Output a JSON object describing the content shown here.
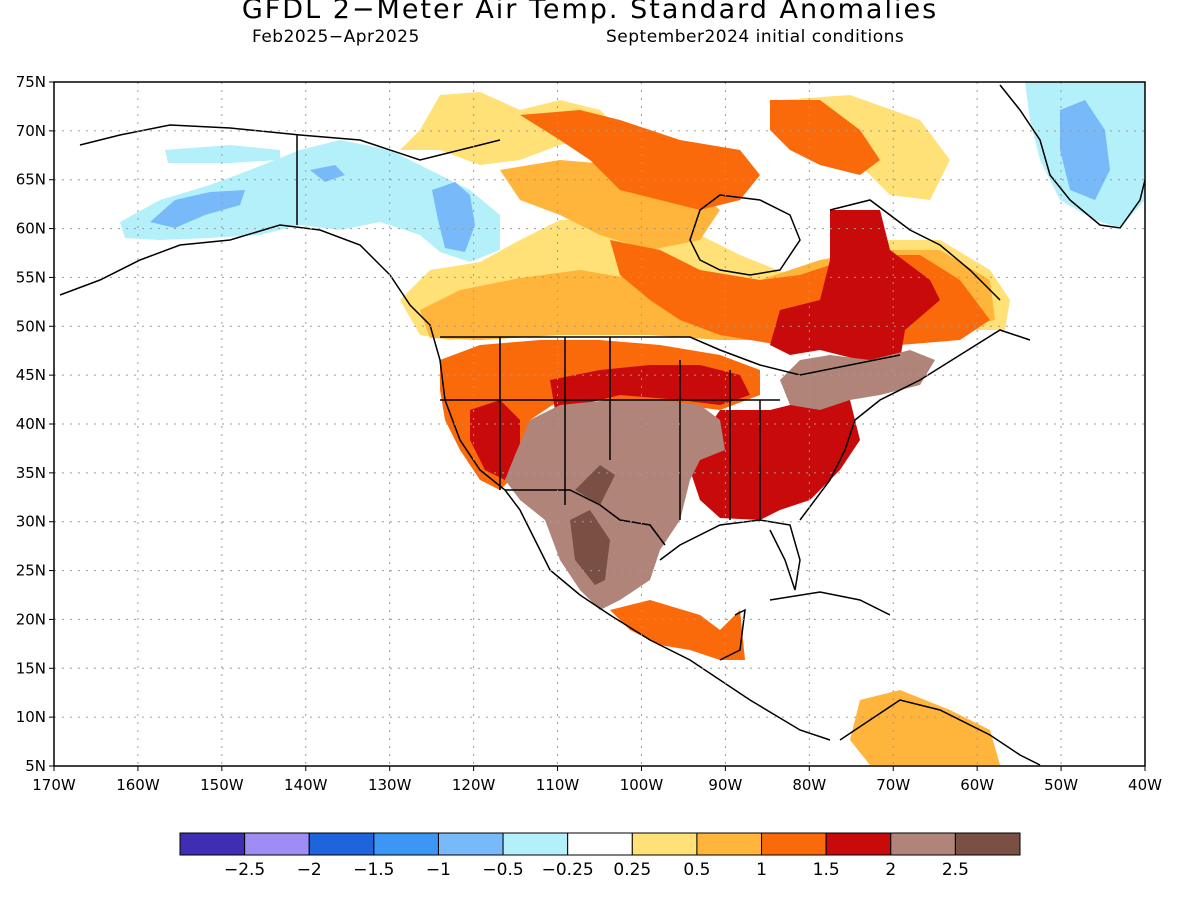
{
  "header": {
    "title": "GFDL 2−Meter Air Temp. Standard Anomalies",
    "period": "Feb2025−Apr2025",
    "init": "September2024 initial conditions"
  },
  "map": {
    "lat_labels": [
      "75N",
      "70N",
      "65N",
      "60N",
      "55N",
      "50N",
      "45N",
      "40N",
      "35N",
      "30N",
      "25N",
      "20N",
      "15N",
      "10N",
      "5N"
    ],
    "lon_labels": [
      "170W",
      "160W",
      "150W",
      "140W",
      "130W",
      "120W",
      "110W",
      "100W",
      "90W",
      "80W",
      "70W",
      "60W",
      "50W",
      "40W"
    ],
    "lat_range": [
      5,
      75
    ],
    "lon_range": [
      -170,
      -40
    ],
    "grid": "dotted"
  },
  "colorbar": {
    "colors": [
      "#3f2eb4",
      "#a08cf5",
      "#1e64dc",
      "#3c96f5",
      "#78b9fa",
      "#b4f0fa",
      "#ffffff",
      "#ffe178",
      "#ffb43c",
      "#fa6a0a",
      "#c80a0a",
      "#b08478",
      "#7a5044"
    ],
    "labels": [
      "−2.5",
      "−2",
      "−1.5",
      "−1",
      "−0.5",
      "−0.25",
      "0.25",
      "0.5",
      "1",
      "1.5",
      "2",
      "2.5"
    ]
  }
}
